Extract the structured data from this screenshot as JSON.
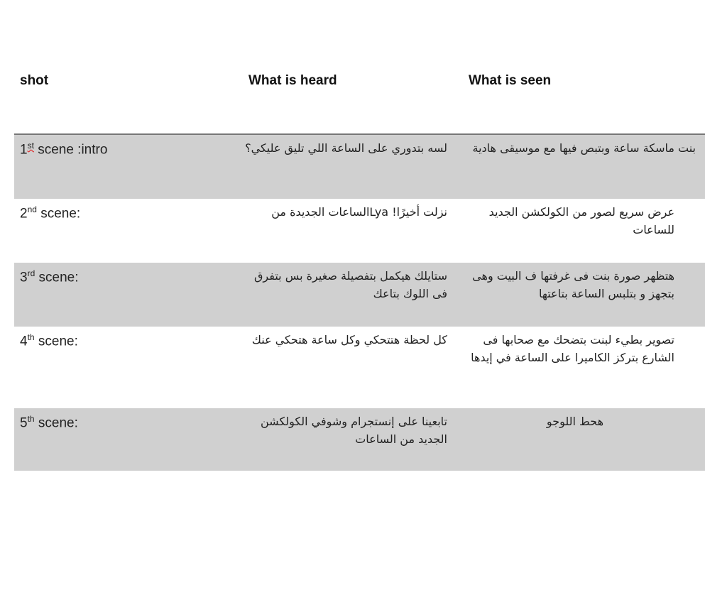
{
  "headers": {
    "shot": "shot",
    "heard": "What is heard",
    "seen": "What is seen"
  },
  "rows": [
    {
      "num": "1",
      "sup": "st",
      "label": " scene  :intro",
      "heard": "لسه بتدوري على الساعة اللي تليق عليكي؟",
      "seen": "بنت ماسكة ساعة وبتبص فيها مع موسيقى هادية"
    },
    {
      "num": "2",
      "sup": "nd",
      "label": " scene:",
      "heard": "نزلت أخيرًا! Lyaالساعات الجديدة من",
      "seen": "عرض سريع لصور  من الكولكشن الجديد للساعات"
    },
    {
      "num": "3",
      "sup": "rd",
      "label": " scene:",
      "heard": "ستايلك هيكمل بتفصيلة صغيرة بس بتفرق فى اللوك بتاعك",
      "seen": "هتظهر صورة بنت فى غرفتها ف البيت وهى بتجهز و بتلبس الساعة بتاعتها"
    },
    {
      "num": "4",
      "sup": "th",
      "label": " scene:",
      "heard": "كل لحظة هتتحكي وكل ساعة هتحكي عنك",
      "seen": "تصوير بطيء لبنت بتضحك مع  صحابها فى الشارع بتركز الكاميرا على الساعة في إيدها"
    },
    {
      "num": "5",
      "sup": "th",
      "label": " scene:",
      "heard": "تابعينا على إنستجرام وشوفي الكولكشن الجديد من الساعات",
      "seen": "هحط اللوجو"
    }
  ]
}
